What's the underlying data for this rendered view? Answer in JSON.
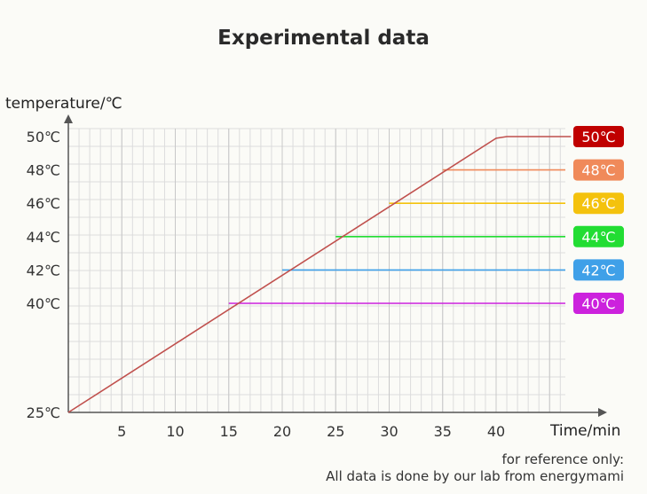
{
  "chart_data": {
    "type": "line",
    "title": "Experimental data",
    "ylabel": "temperature/℃",
    "xlabel": "Time/min",
    "x_ticks": [
      "5",
      "10",
      "15",
      "20",
      "25",
      "30",
      "35",
      "40"
    ],
    "y_ticks": [
      "25℃",
      "40℃",
      "42℃",
      "44℃",
      "46℃",
      "48℃",
      "50℃"
    ],
    "xlim": [
      0,
      47
    ],
    "ylim": [
      25,
      50
    ],
    "grid": true,
    "ramp": {
      "x": [
        0,
        40,
        41,
        47
      ],
      "y": [
        25,
        49.9,
        50,
        50
      ]
    },
    "series": [
      {
        "name": "50℃",
        "plateau": 50,
        "start_x": 41,
        "color": "#c00000"
      },
      {
        "name": "48℃",
        "plateau": 48,
        "start_x": 35,
        "color": "#f08a5a"
      },
      {
        "name": "46℃",
        "plateau": 46,
        "start_x": 30,
        "color": "#f4c20d"
      },
      {
        "name": "44℃",
        "plateau": 44,
        "start_x": 25,
        "color": "#22dd33"
      },
      {
        "name": "42℃",
        "plateau": 42,
        "start_x": 20,
        "color": "#3fa0e8"
      },
      {
        "name": "40℃",
        "plateau": 40,
        "start_x": 15,
        "color": "#cc22dd"
      }
    ],
    "ramp_color": "#c0504d"
  },
  "footnote": {
    "line1": "for reference only:",
    "line2": "All data is done by our lab from energymami"
  }
}
